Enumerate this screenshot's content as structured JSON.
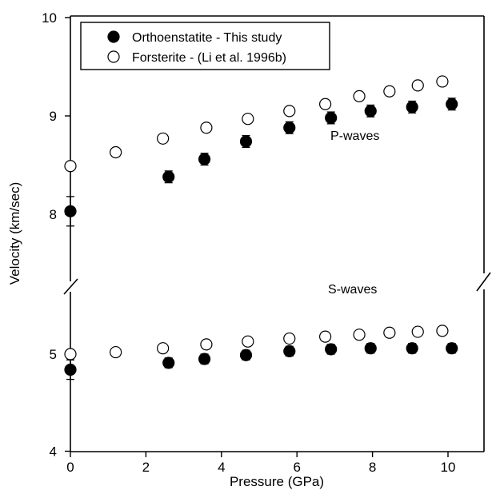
{
  "chart_data": {
    "type": "scatter",
    "xlabel": "Pressure (GPa)",
    "ylabel": "Velocity (km/sec)",
    "xlim": [
      0,
      11
    ],
    "ylim": [
      4,
      10
    ],
    "y_axis_break": [
      5.4,
      7.6
    ],
    "x_ticks": [
      "0",
      "2",
      "4",
      "6",
      "8",
      "10"
    ],
    "y_ticks": [
      "4",
      "5",
      "8",
      "9",
      "10"
    ],
    "legend_position": "top-left",
    "series": [
      {
        "name": "Orthoenstatite - This study",
        "marker": "filled-circle",
        "color": "#000000",
        "p_waves": {
          "x": [
            0.0,
            2.6,
            3.55,
            4.65,
            5.8,
            6.9,
            7.95,
            9.05,
            10.1
          ],
          "y": [
            8.03,
            8.38,
            8.56,
            8.74,
            8.88,
            8.98,
            9.05,
            9.09,
            9.12
          ],
          "error": [
            0.15,
            0.06,
            0.06,
            0.06,
            0.06,
            0.06,
            0.06,
            0.06,
            0.06
          ]
        },
        "s_waves": {
          "x": [
            0.0,
            2.6,
            3.55,
            4.65,
            5.8,
            6.9,
            7.95,
            9.05,
            10.1
          ],
          "y": [
            4.84,
            4.91,
            4.95,
            4.99,
            5.03,
            5.05,
            5.06,
            5.06,
            5.06
          ],
          "error": [
            0.1,
            0.05,
            0.05,
            0.05,
            0.05,
            0.05,
            0.05,
            0.05,
            0.05
          ]
        }
      },
      {
        "name": "Forsterite - (Li et al. 1996b)",
        "marker": "open-circle",
        "color": "#000000",
        "p_waves": {
          "x": [
            0.0,
            1.2,
            2.45,
            3.6,
            4.7,
            5.8,
            6.75,
            7.65,
            8.45,
            9.2,
            9.85
          ],
          "y": [
            8.49,
            8.63,
            8.77,
            8.88,
            8.97,
            9.05,
            9.12,
            9.2,
            9.25,
            9.31,
            9.35
          ]
        },
        "s_waves": {
          "x": [
            0.0,
            1.2,
            2.45,
            3.6,
            4.7,
            5.8,
            6.75,
            7.65,
            8.45,
            9.2,
            9.85
          ],
          "y": [
            5.0,
            5.02,
            5.06,
            5.1,
            5.13,
            5.16,
            5.18,
            5.2,
            5.22,
            5.23,
            5.24
          ]
        }
      }
    ],
    "annotations": [
      "P-waves",
      "S-waves"
    ]
  }
}
